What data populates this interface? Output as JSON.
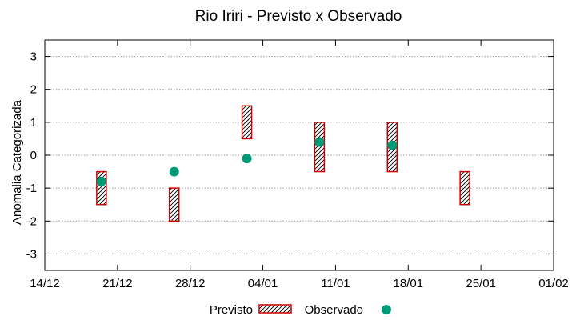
{
  "chart_data": {
    "type": "range-and-scatter",
    "title": "Rio Iriri - Previsto x Observado",
    "xlabel": "",
    "ylabel": "Anomalia Categorizada",
    "ylim": [
      -3.5,
      3.5
    ],
    "y_ticks": [
      -3,
      -2,
      -1,
      0,
      1,
      2,
      3
    ],
    "x_tick_labels": [
      "14/12",
      "21/12",
      "28/12",
      "04/01",
      "11/01",
      "18/01",
      "25/01",
      "01/02"
    ],
    "grid": "horizontal dotted",
    "legend_placement": "bottom",
    "series": [
      {
        "name": "Previsto",
        "kind": "range",
        "color": "#cc0000",
        "points": [
          {
            "x": "21/12",
            "low": -1.5,
            "high": -0.5
          },
          {
            "x": "28/12",
            "low": -2.0,
            "high": -1.0
          },
          {
            "x": "04/01",
            "low": 0.5,
            "high": 1.5
          },
          {
            "x": "11/01",
            "low": -0.5,
            "high": 1.0
          },
          {
            "x": "18/01",
            "low": -0.5,
            "high": 1.0
          },
          {
            "x": "25/01",
            "low": -1.5,
            "high": -0.5
          }
        ]
      },
      {
        "name": "Observado",
        "kind": "scatter",
        "color": "#009a77",
        "points": [
          {
            "x": "21/12",
            "y": -0.8
          },
          {
            "x": "28/12",
            "y": -0.5
          },
          {
            "x": "04/01",
            "y": -0.1
          },
          {
            "x": "11/01",
            "y": 0.4
          },
          {
            "x": "18/01",
            "y": 0.3
          }
        ]
      }
    ]
  }
}
